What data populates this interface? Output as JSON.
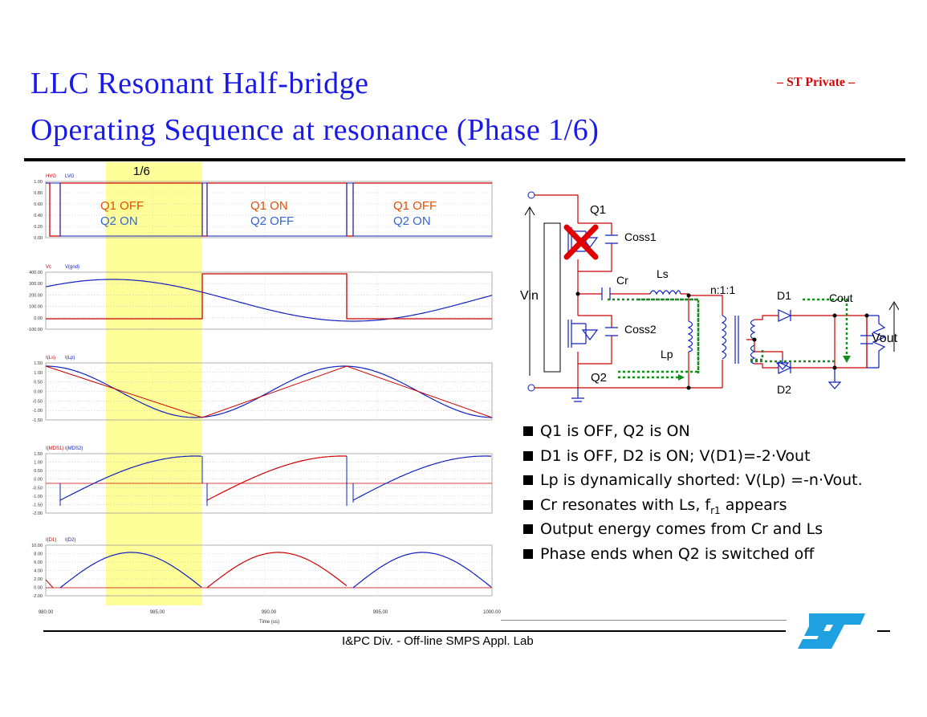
{
  "header": {
    "title_line1": "LLC Resonant Half-bridge",
    "title_line2": "Operating Sequence at resonance (Phase 1/6)",
    "privacy_label": "– ST Private –"
  },
  "waveforms": {
    "highlight_label": "1/6",
    "time_axis_label": "Time (us)",
    "time_ticks": [
      "980.00",
      "985.00",
      "990.00",
      "995.00",
      "1000.00"
    ],
    "panels": [
      {
        "legend": [
          "HVG",
          "LVG"
        ],
        "y_ticks": [
          "1.00",
          "0.80",
          "0.60",
          "0.40",
          "0.20",
          "0.00"
        ],
        "states": [
          {
            "q1": "Q1 OFF",
            "q2": "Q2 ON"
          },
          {
            "q1": "Q1 ON",
            "q2": "Q2 OFF"
          },
          {
            "q1": "Q1 OFF",
            "q2": "Q2 ON"
          }
        ]
      },
      {
        "legend": [
          "Vc",
          "V(gnd)"
        ],
        "y_ticks": [
          "400.00",
          "300.00",
          "200.00",
          "100.00",
          "0.00",
          "-100.00"
        ]
      },
      {
        "legend": [
          "I(Ls)",
          "I(Lp)"
        ],
        "y_ticks": [
          "1.50",
          "1.00",
          "0.50",
          "0.00",
          "-0.50",
          "-1.00",
          "-1.50"
        ]
      },
      {
        "legend": [
          "I(MDS1)",
          "I(MDS2)"
        ],
        "y_ticks": [
          "1.50",
          "1.00",
          "0.50",
          "0.00",
          "-0.50",
          "-1.00",
          "-1.50",
          "-2.00"
        ]
      },
      {
        "legend": [
          "I(D1)",
          "I(D2)"
        ],
        "y_ticks": [
          "10.00",
          "8.00",
          "6.00",
          "4.00",
          "2.00",
          "0.00",
          "-2.00"
        ]
      }
    ]
  },
  "circuit": {
    "labels": {
      "q1": "Q1",
      "q2": "Q2",
      "coss1": "Coss1",
      "coss2": "Coss2",
      "cr": "Cr",
      "ls": "Ls",
      "lp": "Lp",
      "ratio": "n:1:1",
      "d1": "D1",
      "d2": "D2",
      "cout": "Cout",
      "vin": "Vin",
      "vout": "Vout"
    }
  },
  "bullets": [
    "Q1 is OFF, Q2 is ON",
    "D1 is OFF, D2 is ON; V(D1)=-2·Vout",
    "Lp is dynamically shorted: V(Lp) =-n·Vout.",
    "Cr resonates with Ls, f",
    "Output energy comes from Cr and Ls",
    "Phase ends when Q2 is switched off"
  ],
  "bullet_fr_sub": "r1",
  "bullet_fr_tail": " appears",
  "footer": {
    "text": "I&PC Div. - Off-line SMPS Appl. Lab"
  },
  "colors": {
    "title": "#1a1ae6",
    "privacy": "#e00000",
    "waveA": "#cc0000",
    "waveB": "#1020c0",
    "highlight": "#ffff99",
    "q1_state": "#e05000",
    "q2_state": "#3366cc",
    "logo": "#1fa0e0",
    "path": "#10901a"
  }
}
